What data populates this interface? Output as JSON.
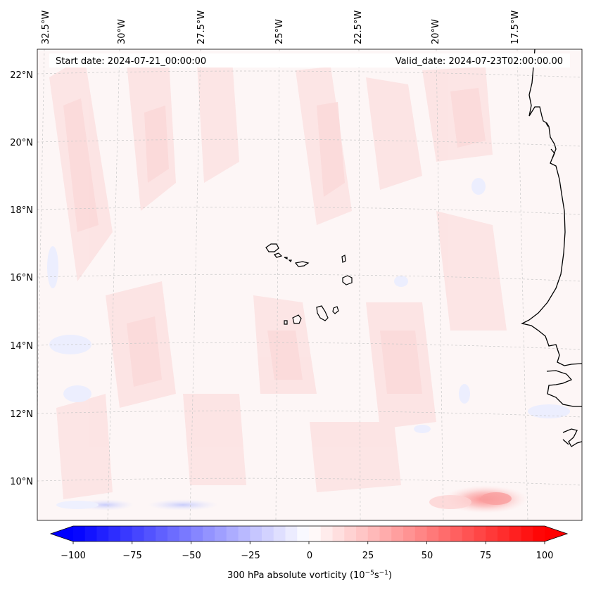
{
  "header": {
    "start_date": "Start date: 2024-07-21_00:00:00",
    "valid_date": "Valid_date: 2024-07-23T02:00:00.00"
  },
  "lon_labels": [
    "32.5°W",
    "30°W",
    "27.5°W",
    "25°W",
    "22.5°W",
    "20°W",
    "17.5°W"
  ],
  "lat_labels": [
    "22°N",
    "20°N",
    "18°N",
    "16°N",
    "14°N",
    "12°N",
    "10°N"
  ],
  "colorbar": {
    "label_pre": "300 hPa absolute vorticity (10",
    "label_sup1": "−5",
    "label_mid": "s",
    "label_sup2": "−1",
    "label_post": ")",
    "ticks": [
      "−100",
      "−75",
      "−50",
      "−25",
      "0",
      "25",
      "50",
      "75",
      "100"
    ],
    "neg_color": "#0000ff",
    "pos_color": "#ff0000"
  },
  "colors": {
    "coastline": "#000000",
    "gridline": "#c8c8c8",
    "background_field": "#fdf5f5"
  }
}
